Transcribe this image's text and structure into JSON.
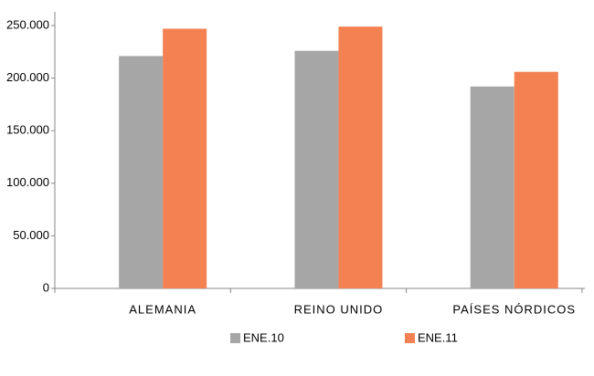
{
  "chart_data": {
    "type": "bar",
    "categories": [
      "ALEMANIA",
      "REINO UNIDO",
      "PAÍSES NÓRDICOS"
    ],
    "series": [
      {
        "name": "ENE.10",
        "color": "#a6a6a6",
        "values": [
          221000,
          226000,
          192000
        ]
      },
      {
        "name": "ENE.11",
        "color": "#f38152",
        "values": [
          247000,
          249000,
          206000
        ]
      }
    ],
    "ylim": [
      0,
      250000
    ],
    "yticks": [
      0,
      {
        "value": 50000,
        "label": "50.000"
      },
      {
        "value": 100000,
        "label": "100.000"
      },
      {
        "value": 150000,
        "label": "150.000"
      },
      {
        "value": 200000,
        "label": "200.000"
      },
      {
        "value": 250000,
        "label": "250.000"
      }
    ],
    "grid": false,
    "legend": "bottom"
  }
}
